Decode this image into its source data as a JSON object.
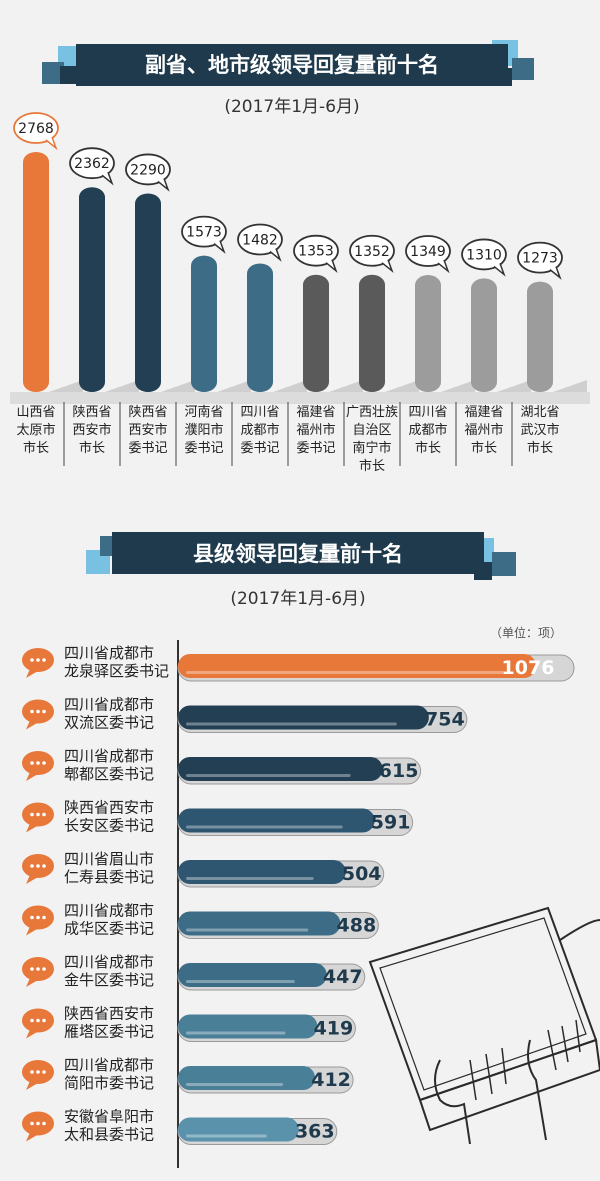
{
  "colors": {
    "background": "#f2f2f2",
    "banner": "#1e3a4c",
    "accent_orange": "#e8773a",
    "navy": "#233f53",
    "teal_dark": "#2e5670",
    "teal": "#3d6d86",
    "gray_dark": "#5a5a5a",
    "gray": "#6a6a6a",
    "gray_light": "#9c9c9c",
    "sky": "#79c1e3"
  },
  "section1": {
    "title": "副省、地市级领导回复量前十名",
    "period": "(2017年1月-6月)"
  },
  "section2": {
    "title": "县级领导回复量前十名",
    "period": "(2017年1月-6月)",
    "unit": "（单位：项）"
  },
  "chart_data": [
    {
      "type": "bar",
      "orientation": "vertical",
      "title": "副省、地市级领导回复量前十名",
      "subtitle": "(2017年1月-6月)",
      "categories": [
        [
          "山西省",
          "太原市",
          "市长"
        ],
        [
          "陕西省",
          "西安市",
          "市长"
        ],
        [
          "陕西省",
          "西安市",
          "委书记"
        ],
        [
          "河南省",
          "濮阳市",
          "委书记"
        ],
        [
          "四川省",
          "成都市",
          "委书记"
        ],
        [
          "福建省",
          "福州市",
          "委书记"
        ],
        [
          "广西壮族",
          "自治区",
          "南宁市",
          "市长"
        ],
        [
          "四川省",
          "成都市",
          "市长"
        ],
        [
          "福建省",
          "福州市",
          "市长"
        ],
        [
          "湖北省",
          "武汉市",
          "市长"
        ]
      ],
      "values": [
        2768,
        2362,
        2290,
        1573,
        1482,
        1353,
        1352,
        1349,
        1310,
        1273
      ],
      "colors": [
        "#e8773a",
        "#233f53",
        "#233f53",
        "#3d6d86",
        "#3d6d86",
        "#5a5a5a",
        "#5a5a5a",
        "#9c9c9c",
        "#9c9c9c",
        "#9c9c9c"
      ],
      "ylim": [
        0,
        2768
      ]
    },
    {
      "type": "bar",
      "orientation": "horizontal",
      "title": "县级领导回复量前十名",
      "subtitle": "(2017年1月-6月)",
      "unit": "（单位：项）",
      "categories": [
        [
          "四川省成都市",
          "龙泉驿区委书记"
        ],
        [
          "四川省成都市",
          "双流区委书记"
        ],
        [
          "四川省成都市",
          "郫都区委书记"
        ],
        [
          "陕西省西安市",
          "长安区委书记"
        ],
        [
          "四川省眉山市",
          "仁寿县委书记"
        ],
        [
          "四川省成都市",
          "成华区委书记"
        ],
        [
          "四川省成都市",
          "金牛区委书记"
        ],
        [
          "陕西省西安市",
          "雁塔区委书记"
        ],
        [
          "四川省成都市",
          "简阳市委书记"
        ],
        [
          "安徽省阜阳市",
          "太和县委书记"
        ]
      ],
      "values": [
        1076,
        754,
        615,
        591,
        504,
        488,
        447,
        419,
        412,
        363
      ],
      "colors": [
        "#e8773a",
        "#233f53",
        "#233f53",
        "#2e5670",
        "#2e5670",
        "#3d6d86",
        "#3d6d86",
        "#4a7f98",
        "#4a7f98",
        "#5a92ab"
      ],
      "xlim": [
        0,
        1076
      ]
    }
  ]
}
